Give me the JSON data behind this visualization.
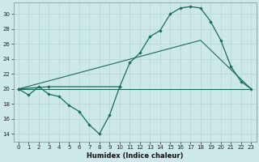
{
  "title": "",
  "xlabel": "Humidex (Indice chaleur)",
  "bg_color": "#cce8e8",
  "grid_color": "#b8d8d8",
  "line_color": "#1a6b5a",
  "xlim": [
    -0.5,
    23.5
  ],
  "ylim": [
    13,
    31.5
  ],
  "yticks": [
    14,
    16,
    18,
    20,
    22,
    24,
    26,
    28,
    30
  ],
  "xticks": [
    0,
    1,
    2,
    3,
    4,
    5,
    6,
    7,
    8,
    9,
    10,
    11,
    12,
    13,
    14,
    15,
    16,
    17,
    18,
    19,
    20,
    21,
    22,
    23
  ],
  "line1_x": [
    0,
    1,
    2,
    3,
    4,
    5,
    6,
    7,
    8,
    9,
    10
  ],
  "line1_y": [
    20.0,
    19.2,
    20.3,
    19.3,
    19.0,
    17.8,
    17.0,
    15.2,
    14.0,
    16.5,
    20.3
  ],
  "line2_x": [
    0,
    3,
    10,
    11,
    12,
    13,
    14,
    15,
    16,
    17,
    18,
    19,
    20,
    21,
    22,
    23
  ],
  "line2_y": [
    20.0,
    20.3,
    20.3,
    23.5,
    24.8,
    27.0,
    27.8,
    30.0,
    30.8,
    31.0,
    30.8,
    29.0,
    26.5,
    23.0,
    21.0,
    20.0
  ],
  "line3_x": [
    0,
    23
  ],
  "line3_y": [
    20.0,
    20.0
  ],
  "line4_x": [
    0,
    18,
    23
  ],
  "line4_y": [
    20.0,
    26.5,
    20.0
  ]
}
